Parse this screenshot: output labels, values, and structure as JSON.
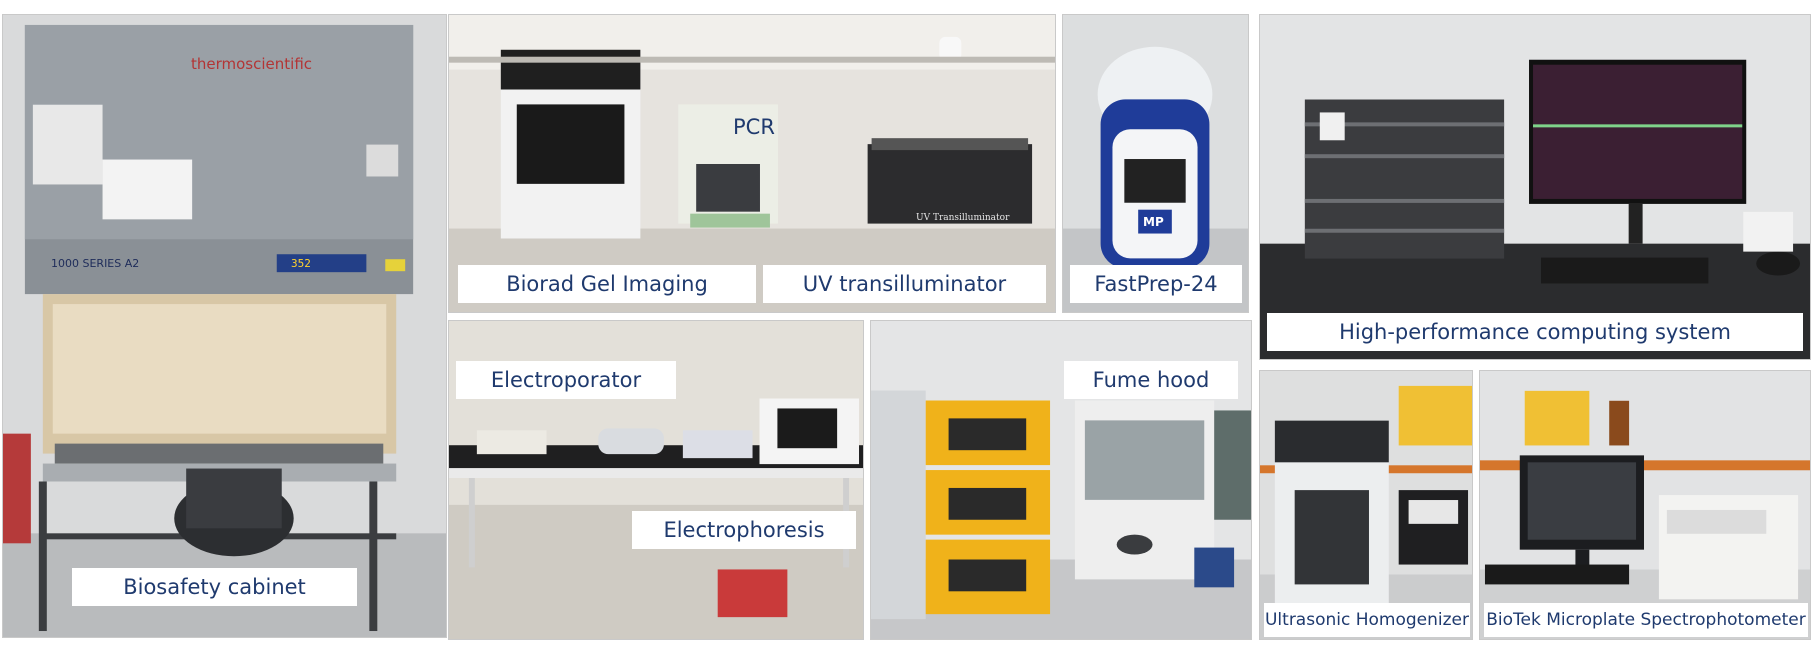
{
  "labels": {
    "biosafety": "Biosafety cabinet",
    "gel_imaging": "Biorad Gel Imaging",
    "uv": "UV transilluminator",
    "pcr": "PCR",
    "fastprep": "FastPrep-24",
    "hpc": "High-performance computing system",
    "electroporator": "Electroporator",
    "electrophoresis": "Electrophoresis",
    "fume_hood": "Fume hood",
    "ultrasonic": "Ultrasonic Homogenizer",
    "biotek": "BioTek Microplate Spectrophotometer"
  },
  "device_text": {
    "brand": "thermoscientific",
    "series": "1000 SERIES A2",
    "cabinet_display": "352",
    "uv_device": "UV Transilluminator",
    "mp_logo": "MP"
  },
  "colors": {
    "label_text": "#1f3a6e",
    "label_bg": "#ffffff",
    "cabinet_grey": "#8a9096",
    "incubator_yellow": "#f0b21a",
    "fastprep_blue": "#1f3c99",
    "monitor_screen": "#3b1f33"
  }
}
